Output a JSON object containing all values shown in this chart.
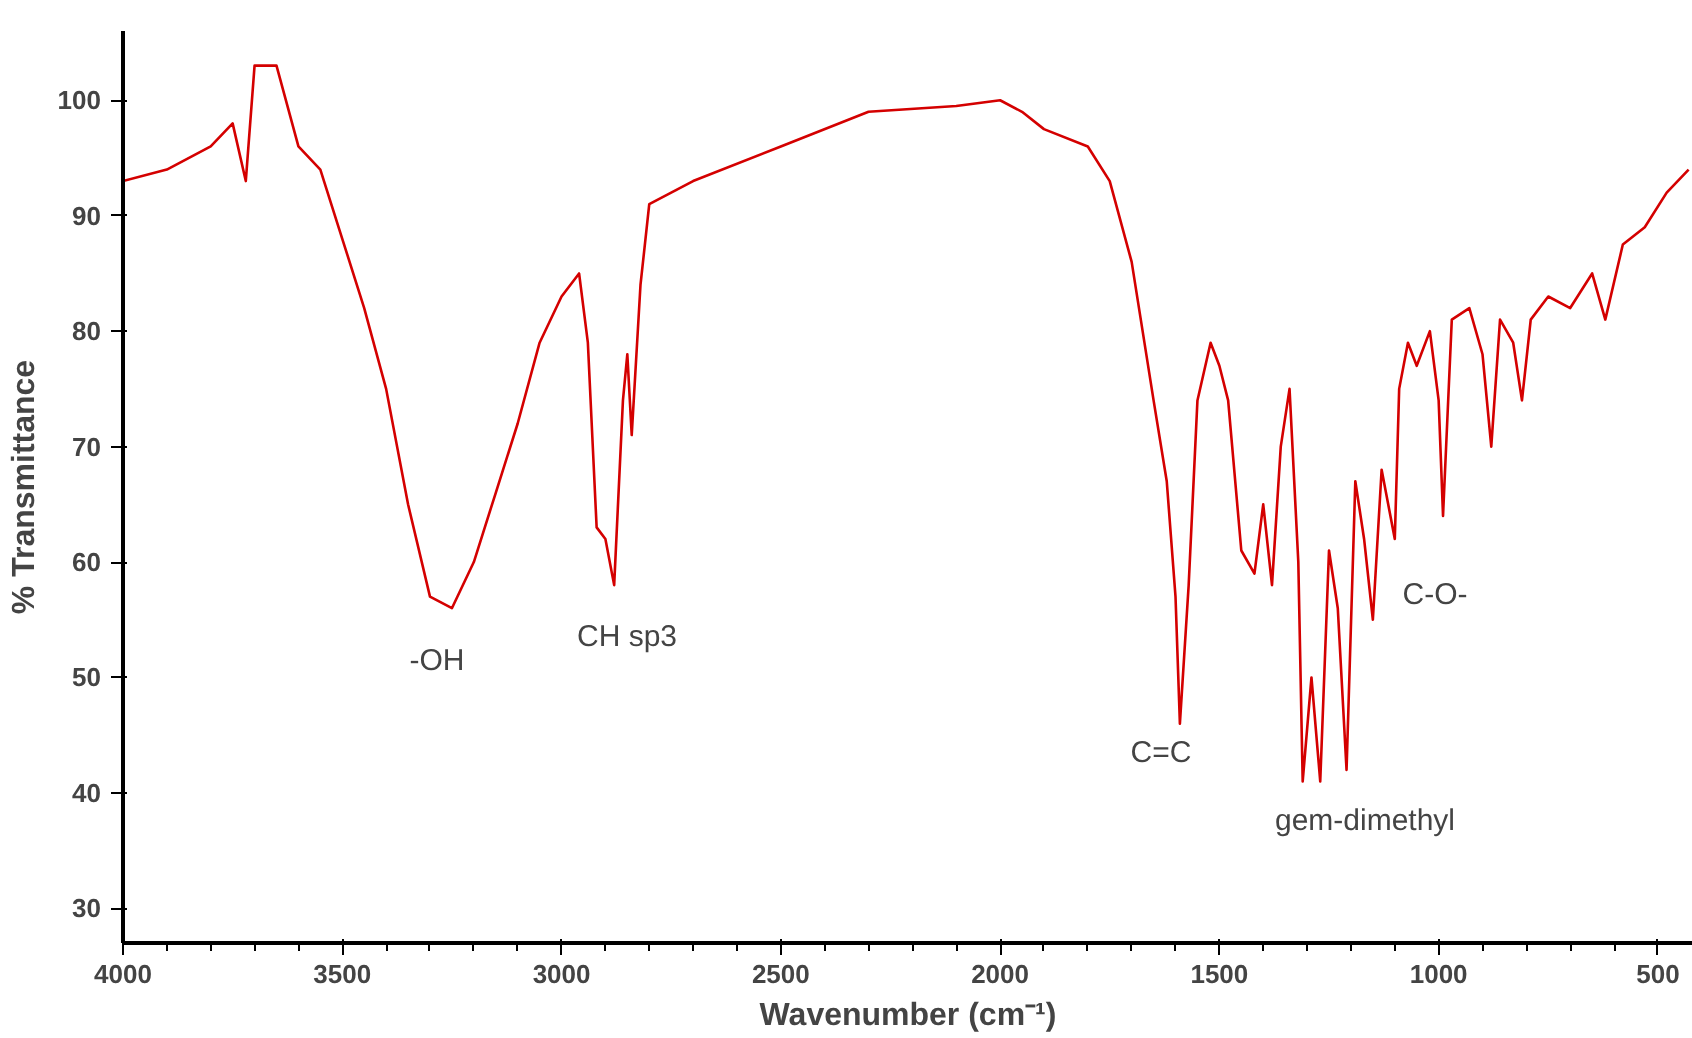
{
  "chart_data": {
    "type": "line",
    "xlabel": "Wavenumber (cm⁻¹)",
    "ylabel": "% Transmittance",
    "xlim": [
      4000,
      420
    ],
    "ylim": [
      27,
      106
    ],
    "xticks": [
      4000,
      3500,
      3000,
      2500,
      2000,
      1500,
      1000,
      500
    ],
    "yticks": [
      30,
      40,
      50,
      60,
      70,
      80,
      90,
      100
    ],
    "grid": false,
    "marker": "none",
    "line_style": "solid",
    "series": [
      {
        "color": "#d40000",
        "x": [
          4000,
          3900,
          3800,
          3750,
          3720,
          3700,
          3650,
          3600,
          3550,
          3500,
          3450,
          3400,
          3350,
          3300,
          3250,
          3200,
          3150,
          3100,
          3050,
          3000,
          2960,
          2940,
          2920,
          2900,
          2880,
          2860,
          2850,
          2840,
          2820,
          2800,
          2750,
          2700,
          2500,
          2300,
          2100,
          2000,
          1950,
          1900,
          1800,
          1750,
          1700,
          1650,
          1620,
          1600,
          1590,
          1570,
          1550,
          1520,
          1500,
          1480,
          1450,
          1420,
          1400,
          1380,
          1360,
          1340,
          1320,
          1310,
          1290,
          1270,
          1250,
          1230,
          1210,
          1190,
          1170,
          1150,
          1130,
          1100,
          1090,
          1070,
          1050,
          1020,
          1000,
          990,
          970,
          930,
          900,
          880,
          860,
          830,
          810,
          790,
          750,
          700,
          650,
          620,
          580,
          530,
          480,
          430
        ],
        "values": [
          93,
          94,
          96,
          98,
          93,
          103,
          103,
          96,
          94,
          88,
          82,
          75,
          65,
          57,
          56,
          60,
          66,
          72,
          79,
          83,
          85,
          79,
          63,
          62,
          58,
          74,
          78,
          71,
          84,
          91,
          92,
          93,
          96,
          99,
          99.5,
          100,
          99,
          97.5,
          96,
          93,
          86,
          74,
          67,
          57,
          46,
          58,
          74,
          79,
          77,
          74,
          61,
          59,
          65,
          58,
          70,
          75,
          60,
          41,
          50,
          41,
          61,
          56,
          42,
          67,
          62,
          55,
          68,
          62,
          75,
          79,
          77,
          80,
          74,
          64,
          81,
          82,
          78,
          70,
          81,
          79,
          74,
          81,
          83,
          82,
          85,
          81,
          87.5,
          89,
          92,
          94
        ]
      }
    ],
    "annotations": [
      "-OH",
      "CH sp3",
      "C=C",
      "gem-dimethyl",
      "C-O-"
    ]
  }
}
